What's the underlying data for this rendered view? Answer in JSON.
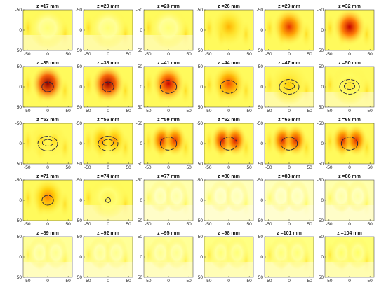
{
  "chart_data": {
    "type": "heatmap",
    "layout": {
      "rows": 5,
      "cols": 6
    },
    "xlim": [
      -60,
      60
    ],
    "ylim": [
      -50,
      50
    ],
    "xticks": [
      -50,
      0,
      50
    ],
    "yticks": [
      -50,
      0,
      50
    ],
    "colormap": [
      "#ffffff",
      "#ffff66",
      "#ffcc00",
      "#ff6600",
      "#cc0000",
      "#660000"
    ],
    "panels": [
      {
        "title": "z =17 mm",
        "z": 17,
        "peak": 0.18,
        "shape": "diffuse",
        "contour": null
      },
      {
        "title": "z =20 mm",
        "z": 20,
        "peak": 0.18,
        "shape": "diffuse",
        "contour": null
      },
      {
        "title": "z =23 mm",
        "z": 23,
        "peak": 0.18,
        "shape": "diffuse",
        "contour": null
      },
      {
        "title": "z =26 mm",
        "z": 26,
        "peak": 0.45,
        "shape": "blob",
        "contour": null
      },
      {
        "title": "z =29 mm",
        "z": 29,
        "peak": 0.7,
        "shape": "blob",
        "contour": null
      },
      {
        "title": "z =32 mm",
        "z": 32,
        "peak": 0.82,
        "shape": "blob",
        "contour": null
      },
      {
        "title": "z =35 mm",
        "z": 35,
        "peak": 0.92,
        "shape": "blob",
        "contour": "small"
      },
      {
        "title": "z =38 mm",
        "z": 38,
        "peak": 0.9,
        "shape": "blob",
        "contour": "small"
      },
      {
        "title": "z =41 mm",
        "z": 41,
        "peak": 0.8,
        "shape": "blob",
        "contour": "medium"
      },
      {
        "title": "z =44 mm",
        "z": 44,
        "peak": 0.65,
        "shape": "blob",
        "contour": "medium"
      },
      {
        "title": "z =47 mm",
        "z": 47,
        "peak": 0.4,
        "shape": "diffuse",
        "contour": "double"
      },
      {
        "title": "z =50 mm",
        "z": 50,
        "peak": 0.3,
        "shape": "diffuse",
        "contour": "double"
      },
      {
        "title": "z =53 mm",
        "z": 53,
        "peak": 0.35,
        "shape": "twin",
        "contour": "double"
      },
      {
        "title": "z =56 mm",
        "z": 56,
        "peak": 0.5,
        "shape": "twin",
        "contour": "double"
      },
      {
        "title": "z =59 mm",
        "z": 59,
        "peak": 0.7,
        "shape": "twin",
        "contour": "medium"
      },
      {
        "title": "z =62 mm",
        "z": 62,
        "peak": 0.75,
        "shape": "twin",
        "contour": "medium"
      },
      {
        "title": "z =65 mm",
        "z": 65,
        "peak": 0.72,
        "shape": "twin",
        "contour": "medium"
      },
      {
        "title": "z =68 mm",
        "z": 68,
        "peak": 0.7,
        "shape": "twin",
        "contour": "medium"
      },
      {
        "title": "z =71 mm",
        "z": 71,
        "peak": 0.55,
        "shape": "blob",
        "contour": "small"
      },
      {
        "title": "z =74 mm",
        "z": 74,
        "peak": 0.25,
        "shape": "diffuse",
        "contour": "tiny"
      },
      {
        "title": "z =77 mm",
        "z": 77,
        "peak": 0.12,
        "shape": "faint",
        "contour": null
      },
      {
        "title": "z =80 mm",
        "z": 80,
        "peak": 0.1,
        "shape": "faint",
        "contour": null
      },
      {
        "title": "z =83 mm",
        "z": 83,
        "peak": 0.1,
        "shape": "faint",
        "contour": null
      },
      {
        "title": "z =86 mm",
        "z": 86,
        "peak": 0.12,
        "shape": "faint",
        "contour": null
      },
      {
        "title": "z =89 mm",
        "z": 89,
        "peak": 0.15,
        "shape": "faint",
        "contour": null
      },
      {
        "title": "z =92 mm",
        "z": 92,
        "peak": 0.15,
        "shape": "faint",
        "contour": null
      },
      {
        "title": "z =95 mm",
        "z": 95,
        "peak": 0.15,
        "shape": "faint",
        "contour": null
      },
      {
        "title": "z =98 mm",
        "z": 98,
        "peak": 0.18,
        "shape": "faint",
        "contour": null
      },
      {
        "title": "z =101 mm",
        "z": 101,
        "peak": 0.18,
        "shape": "faint",
        "contour": null
      },
      {
        "title": "z =104 mm",
        "z": 104,
        "peak": 0.2,
        "shape": "faint",
        "contour": null
      }
    ]
  }
}
